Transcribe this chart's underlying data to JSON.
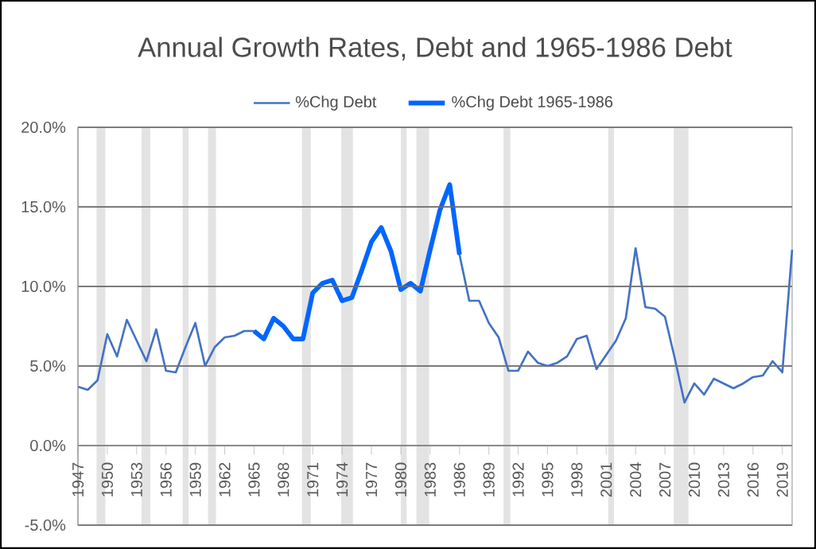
{
  "chart_data": {
    "type": "line",
    "title": "Annual Growth Rates, Debt and 1965-1986 Debt",
    "x": [
      1947,
      1948,
      1949,
      1950,
      1951,
      1952,
      1953,
      1954,
      1955,
      1956,
      1957,
      1958,
      1959,
      1960,
      1961,
      1962,
      1963,
      1964,
      1965,
      1966,
      1967,
      1968,
      1969,
      1970,
      1971,
      1972,
      1973,
      1974,
      1975,
      1976,
      1977,
      1978,
      1979,
      1980,
      1981,
      1982,
      1983,
      1984,
      1985,
      1986,
      1987,
      1988,
      1989,
      1990,
      1991,
      1992,
      1993,
      1994,
      1995,
      1996,
      1997,
      1998,
      1999,
      2000,
      2001,
      2002,
      2003,
      2004,
      2005,
      2006,
      2007,
      2008,
      2009,
      2010,
      2011,
      2012,
      2013,
      2014,
      2015,
      2016,
      2017,
      2018,
      2019,
      2020
    ],
    "series": [
      {
        "name": "%Chg Debt",
        "color": "#4472c4",
        "values": [
          3.7,
          3.5,
          4.1,
          7.0,
          5.6,
          7.9,
          6.6,
          5.3,
          7.3,
          4.7,
          4.6,
          6.2,
          7.7,
          5.0,
          6.2,
          6.8,
          6.9,
          7.2,
          7.2,
          6.7,
          8.0,
          7.5,
          6.7,
          6.7,
          9.6,
          10.2,
          10.4,
          9.1,
          9.3,
          11.0,
          12.8,
          13.7,
          12.2,
          9.8,
          10.2,
          9.7,
          12.3,
          14.8,
          16.4,
          12.0,
          9.1,
          9.1,
          7.7,
          6.8,
          4.7,
          4.7,
          5.9,
          5.2,
          5.0,
          5.2,
          5.6,
          6.7,
          6.9,
          4.8,
          5.7,
          6.6,
          8.0,
          12.4,
          8.7,
          8.6,
          8.1,
          5.5,
          2.7,
          3.9,
          3.2,
          4.2,
          3.9,
          3.6,
          3.9,
          4.3,
          4.4,
          5.3,
          4.6,
          12.3
        ]
      },
      {
        "name": "%Chg Debt 1965-1986",
        "color": "#0066ff",
        "x": [
          1965,
          1966,
          1967,
          1968,
          1969,
          1970,
          1971,
          1972,
          1973,
          1974,
          1975,
          1976,
          1977,
          1978,
          1979,
          1980,
          1981,
          1982,
          1983,
          1984,
          1985,
          1986
        ],
        "values": [
          7.2,
          6.7,
          8.0,
          7.5,
          6.7,
          6.7,
          9.6,
          10.2,
          10.4,
          9.1,
          9.3,
          11.0,
          12.8,
          13.7,
          12.2,
          9.8,
          10.2,
          9.7,
          12.3,
          14.8,
          16.4,
          12.0
        ]
      }
    ],
    "xlim": [
      1947,
      2020
    ],
    "xticks": [
      1947,
      1950,
      1953,
      1956,
      1959,
      1962,
      1965,
      1968,
      1971,
      1974,
      1977,
      1980,
      1983,
      1986,
      1989,
      1992,
      1995,
      1998,
      2001,
      2004,
      2007,
      2010,
      2013,
      2016,
      2019
    ],
    "ylim": [
      -5,
      20
    ],
    "yticks": [
      {
        "value": -5,
        "label": "-5.0%"
      },
      {
        "value": 0,
        "label": "0.0%"
      },
      {
        "value": 5,
        "label": "5.0%"
      },
      {
        "value": 10,
        "label": "10.0%"
      },
      {
        "value": 15,
        "label": "15.0%"
      },
      {
        "value": 20,
        "label": "20.0%"
      }
    ],
    "bands": [
      {
        "axis": "x",
        "from": 1948.9,
        "to": 1949.8,
        "color": "#e3e3e3"
      },
      {
        "axis": "x",
        "from": 1953.5,
        "to": 1954.4,
        "color": "#e3e3e3"
      },
      {
        "axis": "x",
        "from": 1957.7,
        "to": 1958.3,
        "color": "#e3e3e3"
      },
      {
        "axis": "x",
        "from": 1960.3,
        "to": 1961.1,
        "color": "#e3e3e3"
      },
      {
        "axis": "x",
        "from": 1969.9,
        "to": 1970.8,
        "color": "#e3e3e3"
      },
      {
        "axis": "x",
        "from": 1973.9,
        "to": 1975.1,
        "color": "#e3e3e3"
      },
      {
        "axis": "x",
        "from": 1980.0,
        "to": 1980.6,
        "color": "#e3e3e3"
      },
      {
        "axis": "x",
        "from": 1981.6,
        "to": 1982.9,
        "color": "#e3e3e3"
      },
      {
        "axis": "x",
        "from": 1990.5,
        "to": 1991.2,
        "color": "#e3e3e3"
      },
      {
        "axis": "x",
        "from": 2001.2,
        "to": 2001.8,
        "color": "#e3e3e3"
      },
      {
        "axis": "x",
        "from": 2007.9,
        "to": 2009.4,
        "color": "#e3e3e3"
      }
    ],
    "grid": "y",
    "legend": "top",
    "marker": "none"
  }
}
